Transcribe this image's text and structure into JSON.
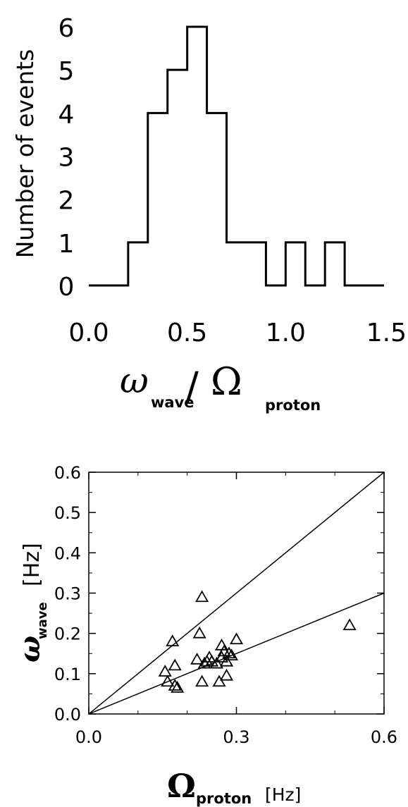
{
  "chart_data": [
    {
      "type": "histogram",
      "ylabel": "Number of events",
      "xlabel_symbol": "ω",
      "xlabel_symbol_sub": "wave",
      "xlabel_slash": "/",
      "xlabel_denominator": "Ω",
      "xlabel_denominator_sub": "proton",
      "xlim": [
        0.0,
        1.5
      ],
      "ylim": [
        0,
        6
      ],
      "x_ticks": [
        "0.0",
        "0.5",
        "1.0",
        "1.5"
      ],
      "y_ticks": [
        "0",
        "1",
        "2",
        "3",
        "4",
        "5",
        "6"
      ],
      "bins": [
        {
          "x0": 0.0,
          "x1": 0.2,
          "count": 0
        },
        {
          "x0": 0.2,
          "x1": 0.3,
          "count": 1
        },
        {
          "x0": 0.3,
          "x1": 0.4,
          "count": 4
        },
        {
          "x0": 0.4,
          "x1": 0.5,
          "count": 5
        },
        {
          "x0": 0.5,
          "x1": 0.6,
          "count": 6
        },
        {
          "x0": 0.6,
          "x1": 0.7,
          "count": 4
        },
        {
          "x0": 0.7,
          "x1": 0.9,
          "count": 1
        },
        {
          "x0": 0.9,
          "x1": 1.0,
          "count": 0
        },
        {
          "x0": 1.0,
          "x1": 1.1,
          "count": 1
        },
        {
          "x0": 1.1,
          "x1": 1.2,
          "count": 0
        },
        {
          "x0": 1.2,
          "x1": 1.3,
          "count": 1
        },
        {
          "x0": 1.3,
          "x1": 1.5,
          "count": 0
        }
      ]
    },
    {
      "type": "scatter",
      "marker": "triangle",
      "ylabel_symbol": "ω",
      "ylabel_sub": "wave",
      "ylabel_unit": "[Hz]",
      "xlabel_symbol": "Ω",
      "xlabel_sub": "proton",
      "xlabel_unit": "[Hz]",
      "xlim": [
        0.0,
        0.6
      ],
      "ylim": [
        0.0,
        0.6
      ],
      "x_ticks": [
        "0.0",
        "0.3",
        "0.6"
      ],
      "y_ticks": [
        "0.0",
        "0.1",
        "0.2",
        "0.3",
        "0.4",
        "0.5",
        "0.6"
      ],
      "reference_lines": [
        {
          "slope": 1.0
        },
        {
          "slope": 0.5
        }
      ],
      "points": [
        {
          "x": 0.155,
          "y": 0.105
        },
        {
          "x": 0.16,
          "y": 0.08
        },
        {
          "x": 0.17,
          "y": 0.18
        },
        {
          "x": 0.175,
          "y": 0.12
        },
        {
          "x": 0.175,
          "y": 0.07
        },
        {
          "x": 0.18,
          "y": 0.065
        },
        {
          "x": 0.22,
          "y": 0.135
        },
        {
          "x": 0.225,
          "y": 0.2
        },
        {
          "x": 0.23,
          "y": 0.29
        },
        {
          "x": 0.23,
          "y": 0.08
        },
        {
          "x": 0.235,
          "y": 0.125
        },
        {
          "x": 0.24,
          "y": 0.13
        },
        {
          "x": 0.245,
          "y": 0.14
        },
        {
          "x": 0.25,
          "y": 0.13
        },
        {
          "x": 0.26,
          "y": 0.125
        },
        {
          "x": 0.265,
          "y": 0.08
        },
        {
          "x": 0.27,
          "y": 0.14
        },
        {
          "x": 0.27,
          "y": 0.17
        },
        {
          "x": 0.275,
          "y": 0.155
        },
        {
          "x": 0.28,
          "y": 0.13
        },
        {
          "x": 0.28,
          "y": 0.095
        },
        {
          "x": 0.285,
          "y": 0.15
        },
        {
          "x": 0.29,
          "y": 0.145
        },
        {
          "x": 0.3,
          "y": 0.185
        },
        {
          "x": 0.53,
          "y": 0.22
        }
      ]
    }
  ]
}
